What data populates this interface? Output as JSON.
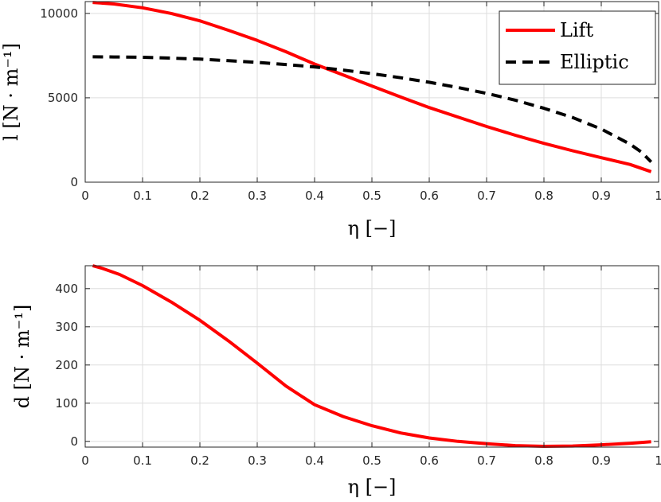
{
  "chart_data": [
    {
      "type": "line",
      "xlabel": "η [−]",
      "ylabel": "l [N · m⁻¹]",
      "xlim": [
        0,
        1
      ],
      "ylim": [
        0,
        10700
      ],
      "xticks": [
        "0",
        "0.1",
        "0.2",
        "0.3",
        "0.4",
        "0.5",
        "0.6",
        "0.7",
        "0.8",
        "0.9",
        "1"
      ],
      "yticks": [
        "0",
        "5000",
        "10000"
      ],
      "xtick_values": [
        0,
        0.1,
        0.2,
        0.3,
        0.4,
        0.5,
        0.6,
        0.7,
        0.8,
        0.9,
        1
      ],
      "ytick_values": [
        0,
        5000,
        10000
      ],
      "grid": true,
      "legend": "top-right",
      "series": [
        {
          "name": "Lift",
          "color": "#ff0000",
          "style": "solid",
          "x": [
            0.013,
            0.05,
            0.1,
            0.15,
            0.2,
            0.25,
            0.3,
            0.35,
            0.4,
            0.45,
            0.5,
            0.55,
            0.6,
            0.65,
            0.7,
            0.75,
            0.8,
            0.85,
            0.9,
            0.95,
            0.987
          ],
          "y": [
            10650,
            10560,
            10330,
            10000,
            9560,
            9000,
            8400,
            7730,
            7000,
            6350,
            5700,
            5050,
            4420,
            3860,
            3300,
            2780,
            2300,
            1860,
            1450,
            1050,
            620
          ]
        },
        {
          "name": "Elliptic",
          "color": "#000000",
          "style": "dashed",
          "x": [
            0.013,
            0.05,
            0.1,
            0.15,
            0.2,
            0.25,
            0.3,
            0.35,
            0.4,
            0.45,
            0.5,
            0.55,
            0.6,
            0.65,
            0.7,
            0.75,
            0.8,
            0.85,
            0.9,
            0.95,
            0.97,
            0.987
          ],
          "y": [
            7430,
            7420,
            7400,
            7350,
            7290,
            7200,
            7100,
            6970,
            6830,
            6640,
            6430,
            6190,
            5920,
            5610,
            5260,
            4860,
            4380,
            3830,
            3150,
            2260,
            1780,
            1200
          ]
        }
      ]
    },
    {
      "type": "line",
      "xlabel": "η [−]",
      "ylabel": "d [N · m⁻¹]",
      "xlim": [
        0,
        1
      ],
      "ylim": [
        -15,
        460
      ],
      "xticks": [
        "0",
        "0.1",
        "0.2",
        "0.3",
        "0.4",
        "0.5",
        "0.6",
        "0.7",
        "0.8",
        "0.9",
        "1"
      ],
      "yticks": [
        "0",
        "100",
        "200",
        "300",
        "400"
      ],
      "xtick_values": [
        0,
        0.1,
        0.2,
        0.3,
        0.4,
        0.5,
        0.6,
        0.7,
        0.8,
        0.9,
        1
      ],
      "ytick_values": [
        0,
        100,
        200,
        300,
        400
      ],
      "grid": true,
      "series": [
        {
          "color": "#ff0000",
          "style": "solid",
          "x": [
            0.013,
            0.03,
            0.06,
            0.1,
            0.15,
            0.2,
            0.25,
            0.3,
            0.35,
            0.4,
            0.45,
            0.5,
            0.55,
            0.6,
            0.65,
            0.7,
            0.75,
            0.8,
            0.85,
            0.9,
            0.95,
            0.987
          ],
          "y": [
            460,
            453,
            437,
            408,
            365,
            317,
            263,
            205,
            145,
            96,
            65,
            41,
            22,
            9,
            0,
            -6,
            -11,
            -13,
            -12,
            -9,
            -5,
            -1
          ]
        }
      ]
    }
  ]
}
